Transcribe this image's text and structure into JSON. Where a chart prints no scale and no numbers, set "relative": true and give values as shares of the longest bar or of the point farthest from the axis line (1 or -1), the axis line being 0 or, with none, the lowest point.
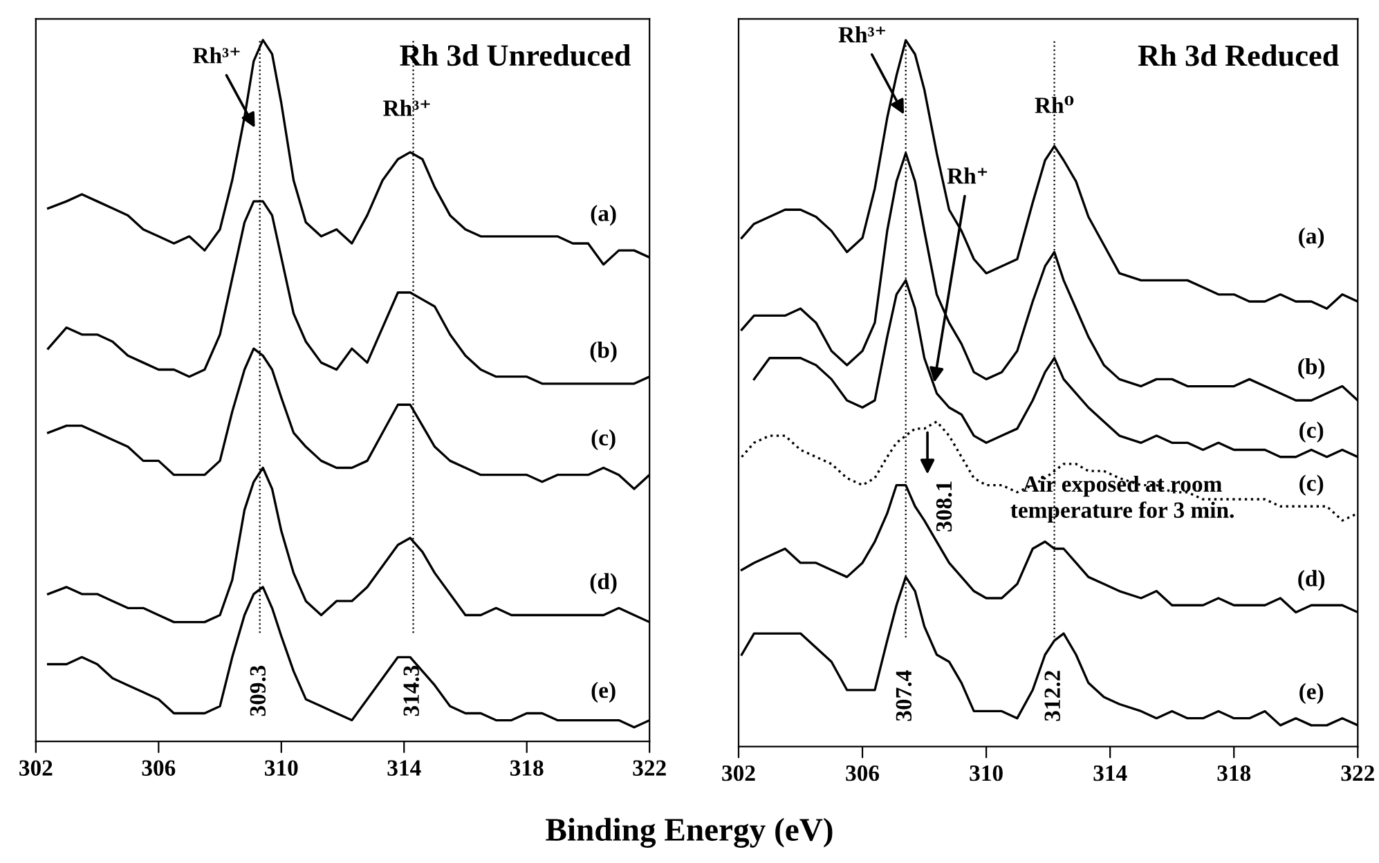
{
  "chart_data": [
    {
      "type": "line",
      "title": "Rh 3d Unreduced",
      "xlabel": "Binding Energy (eV)",
      "relative": true,
      "tick_labels": "x",
      "grid": false,
      "legend": false,
      "xlim": [
        302,
        322
      ],
      "xticks": [
        302,
        306,
        310,
        314,
        318,
        322
      ],
      "x": [
        302.4,
        303,
        303.5,
        304,
        304.5,
        305,
        305.5,
        306,
        306.5,
        307,
        307.5,
        308,
        308.4,
        308.8,
        309.1,
        309.4,
        309.7,
        310,
        310.4,
        310.8,
        311.3,
        311.8,
        312.3,
        312.8,
        313.3,
        313.8,
        314.2,
        314.6,
        315,
        315.5,
        316,
        316.5,
        317,
        317.5,
        318,
        318.5,
        319,
        319.5,
        320,
        320.5,
        321,
        321.5,
        322
      ],
      "series": [
        {
          "name": "(a)",
          "color": "#000000",
          "line_style": "solid",
          "values": [
            0.76,
            0.77,
            0.78,
            0.77,
            0.76,
            0.75,
            0.73,
            0.72,
            0.71,
            0.72,
            0.7,
            0.73,
            0.8,
            0.89,
            0.97,
            1.0,
            0.98,
            0.91,
            0.8,
            0.74,
            0.72,
            0.73,
            0.71,
            0.75,
            0.8,
            0.83,
            0.84,
            0.83,
            0.79,
            0.75,
            0.73,
            0.72,
            0.72,
            0.72,
            0.72,
            0.72,
            0.72,
            0.71,
            0.71,
            0.68,
            0.7,
            0.7,
            0.69
          ]
        },
        {
          "name": "(b)",
          "color": "#000000",
          "line_style": "solid",
          "values": [
            0.56,
            0.59,
            0.58,
            0.58,
            0.57,
            0.55,
            0.54,
            0.53,
            0.53,
            0.52,
            0.53,
            0.58,
            0.66,
            0.74,
            0.77,
            0.77,
            0.75,
            0.69,
            0.61,
            0.57,
            0.54,
            0.53,
            0.56,
            0.54,
            0.59,
            0.64,
            0.64,
            0.63,
            0.62,
            0.58,
            0.55,
            0.53,
            0.52,
            0.52,
            0.52,
            0.51,
            0.51,
            0.51,
            0.51,
            0.51,
            0.51,
            0.51,
            0.52
          ]
        },
        {
          "name": "(c)",
          "color": "#000000",
          "line_style": "solid",
          "values": [
            0.44,
            0.45,
            0.45,
            0.44,
            0.43,
            0.42,
            0.4,
            0.4,
            0.38,
            0.38,
            0.38,
            0.4,
            0.47,
            0.53,
            0.56,
            0.55,
            0.53,
            0.49,
            0.44,
            0.42,
            0.4,
            0.39,
            0.39,
            0.4,
            0.44,
            0.48,
            0.48,
            0.45,
            0.42,
            0.4,
            0.39,
            0.38,
            0.38,
            0.38,
            0.38,
            0.37,
            0.38,
            0.38,
            0.38,
            0.39,
            0.38,
            0.36,
            0.38
          ]
        },
        {
          "name": "(d)",
          "color": "#000000",
          "line_style": "solid",
          "values": [
            0.21,
            0.22,
            0.21,
            0.21,
            0.2,
            0.19,
            0.19,
            0.18,
            0.17,
            0.17,
            0.17,
            0.18,
            0.23,
            0.33,
            0.37,
            0.39,
            0.36,
            0.3,
            0.24,
            0.2,
            0.18,
            0.2,
            0.2,
            0.22,
            0.25,
            0.28,
            0.29,
            0.27,
            0.24,
            0.21,
            0.18,
            0.18,
            0.19,
            0.18,
            0.18,
            0.18,
            0.18,
            0.18,
            0.18,
            0.18,
            0.19,
            0.18,
            0.17
          ]
        },
        {
          "name": "(e)",
          "color": "#000000",
          "line_style": "solid",
          "values": [
            0.11,
            0.11,
            0.12,
            0.11,
            0.09,
            0.08,
            0.07,
            0.06,
            0.04,
            0.04,
            0.04,
            0.05,
            0.12,
            0.18,
            0.21,
            0.22,
            0.19,
            0.15,
            0.1,
            0.06,
            0.05,
            0.04,
            0.03,
            0.06,
            0.09,
            0.12,
            0.12,
            0.1,
            0.08,
            0.05,
            0.04,
            0.04,
            0.03,
            0.03,
            0.04,
            0.04,
            0.03,
            0.03,
            0.03,
            0.03,
            0.03,
            0.02,
            0.03
          ]
        }
      ],
      "ref_lines": [
        {
          "axis": "x",
          "value": 309.3,
          "label": "309.3",
          "line_style": "dotted",
          "color": "#000000"
        },
        {
          "axis": "x",
          "value": 314.3,
          "label": "314.3",
          "line_style": "dotted",
          "color": "#000000"
        }
      ],
      "annotations": [
        {
          "text": "Rh³⁺",
          "x": 309.2,
          "y": 0.87
        },
        {
          "text": "Rh³⁺",
          "x": 314.3,
          "y": 0.84
        }
      ]
    },
    {
      "type": "line",
      "title": "Rh 3d Reduced",
      "relative": true,
      "tick_labels": "x",
      "grid": false,
      "legend": false,
      "xlim": [
        302,
        322
      ],
      "xticks": [
        302,
        306,
        310,
        314,
        318,
        322
      ],
      "x": [
        302.1,
        302.5,
        303,
        303.5,
        304,
        304.5,
        305,
        305.5,
        306,
        306.4,
        306.8,
        307.1,
        307.4,
        307.7,
        308,
        308.4,
        308.8,
        309.2,
        309.6,
        310,
        310.5,
        311,
        311.5,
        311.9,
        312.2,
        312.5,
        312.9,
        313.3,
        313.8,
        314.3,
        315,
        315.5,
        316,
        316.5,
        317,
        317.5,
        318,
        318.5,
        319,
        319.5,
        320,
        320.5,
        321,
        321.5,
        322
      ],
      "series": [
        {
          "name": "(a)",
          "color": "#000000",
          "line_style": "solid",
          "values": [
            0.72,
            0.74,
            0.75,
            0.76,
            0.76,
            0.75,
            0.73,
            0.7,
            0.72,
            0.79,
            0.89,
            0.95,
            1.0,
            0.98,
            0.93,
            0.84,
            0.76,
            0.73,
            0.69,
            0.67,
            0.68,
            0.69,
            0.77,
            0.83,
            0.85,
            0.83,
            0.8,
            0.75,
            0.71,
            0.67,
            0.66,
            0.66,
            0.66,
            0.66,
            0.65,
            0.64,
            0.64,
            0.63,
            0.63,
            0.64,
            0.63,
            0.63,
            0.62,
            0.64,
            0.63
          ]
        },
        {
          "name": "(b)",
          "color": "#000000",
          "line_style": "solid",
          "values": [
            0.59,
            0.61,
            0.61,
            0.61,
            0.62,
            0.6,
            0.56,
            0.54,
            0.56,
            0.6,
            0.73,
            0.8,
            0.84,
            0.8,
            0.73,
            0.64,
            0.6,
            0.57,
            0.53,
            0.52,
            0.53,
            0.56,
            0.63,
            0.68,
            0.7,
            0.66,
            0.62,
            0.58,
            0.54,
            0.52,
            0.51,
            0.52,
            0.52,
            0.51,
            0.51,
            0.51,
            0.51,
            0.52,
            0.51,
            0.5,
            0.49,
            0.49,
            0.5,
            0.51,
            0.49
          ]
        },
        {
          "name": "(c)",
          "color": "#000000",
          "line_style": "solid",
          "values": [
            null,
            0.52,
            0.55,
            0.55,
            0.55,
            0.54,
            0.52,
            0.49,
            0.48,
            0.49,
            0.58,
            0.64,
            0.66,
            0.62,
            0.55,
            0.5,
            0.48,
            0.47,
            0.44,
            0.43,
            0.44,
            0.45,
            0.49,
            0.53,
            0.55,
            0.52,
            0.5,
            0.48,
            0.46,
            0.44,
            0.43,
            0.44,
            0.43,
            0.43,
            0.42,
            0.43,
            0.42,
            0.42,
            0.42,
            0.41,
            0.41,
            0.42,
            0.41,
            0.42,
            0.41
          ]
        },
        {
          "name": "(c)",
          "color": "#000000",
          "line_style": "dotted",
          "values": [
            0.41,
            0.43,
            0.44,
            0.44,
            0.42,
            0.41,
            0.4,
            0.38,
            0.37,
            0.38,
            0.41,
            0.43,
            0.44,
            0.45,
            0.45,
            0.46,
            0.44,
            0.41,
            0.38,
            0.37,
            0.37,
            0.36,
            0.37,
            0.38,
            0.39,
            0.4,
            0.4,
            0.39,
            0.39,
            0.38,
            0.37,
            0.37,
            0.36,
            0.36,
            0.35,
            0.35,
            0.35,
            0.35,
            0.35,
            0.34,
            0.34,
            0.34,
            0.34,
            0.32,
            0.33
          ]
        },
        {
          "name": "(d)",
          "color": "#000000",
          "line_style": "solid",
          "values": [
            0.25,
            0.26,
            0.27,
            0.28,
            0.26,
            0.26,
            0.25,
            0.24,
            0.26,
            0.29,
            0.33,
            0.37,
            0.37,
            0.34,
            0.32,
            0.29,
            0.26,
            0.24,
            0.22,
            0.21,
            0.21,
            0.23,
            0.28,
            0.29,
            0.28,
            0.28,
            0.26,
            0.24,
            0.23,
            0.22,
            0.21,
            0.22,
            0.2,
            0.2,
            0.2,
            0.21,
            0.2,
            0.2,
            0.2,
            0.21,
            0.19,
            0.2,
            0.2,
            0.2,
            0.19
          ]
        },
        {
          "name": "(e)",
          "color": "#000000",
          "line_style": "solid",
          "values": [
            0.13,
            0.16,
            0.16,
            0.16,
            0.16,
            0.14,
            0.12,
            0.08,
            0.08,
            0.08,
            0.15,
            0.2,
            0.24,
            0.22,
            0.17,
            0.13,
            0.12,
            0.09,
            0.05,
            0.05,
            0.05,
            0.04,
            0.08,
            0.13,
            0.15,
            0.16,
            0.13,
            0.09,
            0.07,
            0.06,
            0.05,
            0.04,
            0.05,
            0.04,
            0.04,
            0.05,
            0.04,
            0.04,
            0.05,
            0.03,
            0.04,
            0.03,
            0.03,
            0.04,
            0.03
          ]
        }
      ],
      "ref_lines": [
        {
          "axis": "x",
          "value": 307.4,
          "label": "307.4",
          "line_style": "dotted",
          "color": "#000000"
        },
        {
          "axis": "x",
          "value": 312.2,
          "label": "312.2",
          "line_style": "dotted",
          "color": "#000000"
        }
      ],
      "annotations": [
        {
          "text": "Rh³⁺",
          "x": 307.4,
          "y": 0.89
        },
        {
          "text": "Rh⁰",
          "x": 312.2,
          "y": 0.85
        },
        {
          "text": "Rh⁺",
          "x": 308.3,
          "y": 0.51
        },
        {
          "text": "308.1",
          "x": 308.1,
          "y": 0.45
        },
        "Air exposed at room\ntemperature for 3 min."
      ]
    }
  ]
}
